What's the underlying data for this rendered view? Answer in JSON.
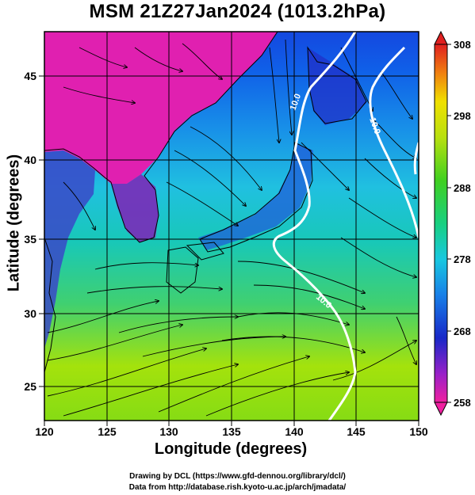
{
  "title": "MSM 21Z27Jan2024 (1013.2hPa)",
  "x_axis": {
    "label": "Longitude (degrees)",
    "ticks": [
      "120",
      "125",
      "130",
      "135",
      "140",
      "145",
      "150"
    ]
  },
  "y_axis": {
    "label": "Latitude  (degrees)",
    "ticks": [
      "25",
      "30",
      "35",
      "40",
      "45"
    ]
  },
  "colorbar": {
    "ticks": [
      "308",
      "298",
      "288",
      "278",
      "268",
      "258"
    ]
  },
  "isotherm_labels": [
    "10.0",
    "10.0",
    "10.0"
  ],
  "credits": {
    "line1": "Drawing by DCL (https://www.gfd-dennou.org/library/dcl/)",
    "line2": "Data from http://database.rish.kyoto-u.ac.jp/arch/jmadata/"
  },
  "colors": {
    "cold": "#e020b0",
    "mid": "#20d0d8",
    "warm": "#88dc10",
    "isotherm": "#ffffff"
  },
  "chart_data": {
    "type": "map",
    "title": "MSM 21Z27Jan2024 (1013.2hPa)",
    "xlabel": "Longitude (degrees)",
    "ylabel": "Latitude  (degrees)",
    "xlim": [
      120,
      150
    ],
    "ylim": [
      22.5,
      47.5
    ],
    "xticks": [
      120,
      125,
      130,
      135,
      140,
      145,
      150
    ],
    "yticks": [
      25,
      30,
      35,
      40,
      45
    ],
    "colorbar": {
      "min": 258,
      "max": 308,
      "ticks": [
        308,
        298,
        288,
        278,
        268,
        258
      ]
    },
    "grid": true
  }
}
